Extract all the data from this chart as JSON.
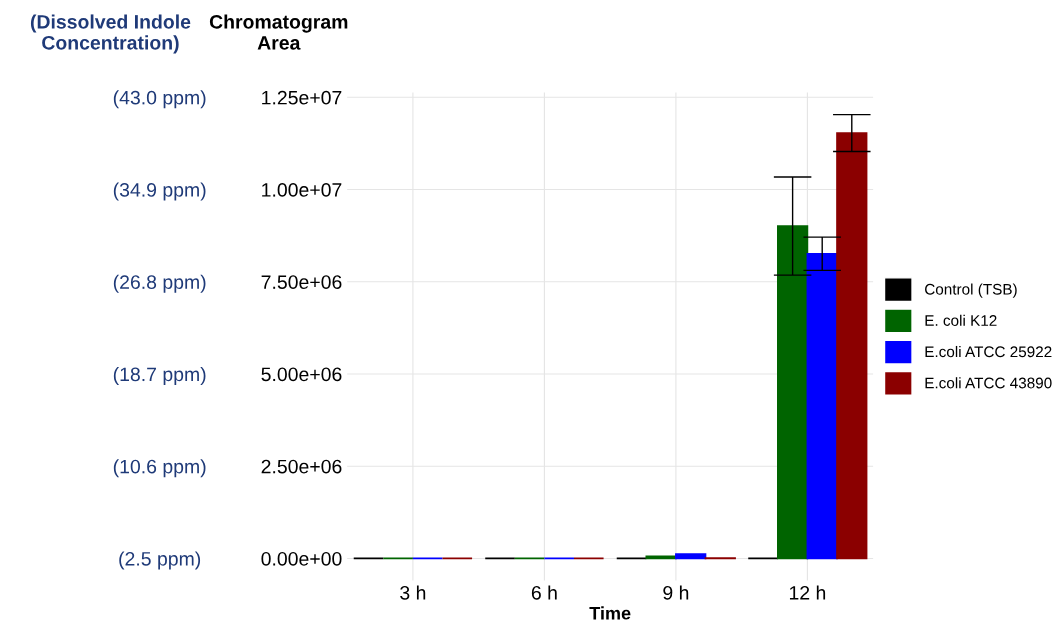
{
  "chart_data": {
    "type": "bar",
    "xlabel": "Time",
    "ylabel": "Chromatogram\nArea",
    "y2label": "(Dissolved Indole\nConcentration)",
    "categories": [
      "3 h",
      "6 h",
      "9 h",
      "12 h"
    ],
    "series": [
      {
        "name": "Control (TSB)",
        "color": "#000000",
        "values": [
          0,
          0,
          0,
          0
        ]
      },
      {
        "name": "E. coli K12",
        "color": "#006400",
        "values": [
          0,
          0,
          60000,
          9010000
        ],
        "errors": [
          null,
          null,
          null,
          1330000
        ]
      },
      {
        "name": "E.coli ATCC 25922",
        "color": "#0000ff",
        "values": [
          0,
          0,
          120000,
          8260000
        ],
        "errors": [
          null,
          null,
          null,
          450000
        ]
      },
      {
        "name": "E.coli ATCC 43890",
        "color": "#8b0000",
        "values": [
          0,
          0,
          10000,
          11530000
        ],
        "errors": [
          null,
          null,
          null,
          500000
        ]
      }
    ],
    "ylim": [
      -600000,
      12630000
    ],
    "yticks": [
      {
        "value": 0,
        "label": "0.00e+00"
      },
      {
        "value": 2500000,
        "label": "2.50e+06"
      },
      {
        "value": 5000000,
        "label": "5.00e+06"
      },
      {
        "value": 7500000,
        "label": "7.50e+06"
      },
      {
        "value": 10000000,
        "label": "1.00e+07"
      },
      {
        "value": 12500000,
        "label": "1.25e+07"
      }
    ],
    "y2lim": [
      0.56,
      43.42
    ],
    "y2ticks": [
      {
        "value": 2.5,
        "label": "(2.5 ppm)"
      },
      {
        "value": 10.6,
        "label": "(10.6 ppm)"
      },
      {
        "value": 18.7,
        "label": "(18.7 ppm)"
      },
      {
        "value": 26.8,
        "label": "(26.8 ppm)"
      },
      {
        "value": 34.9,
        "label": "(34.9 ppm)"
      },
      {
        "value": 43.0,
        "label": "(43.0 ppm)"
      }
    ],
    "grid": true,
    "legend": "right"
  }
}
